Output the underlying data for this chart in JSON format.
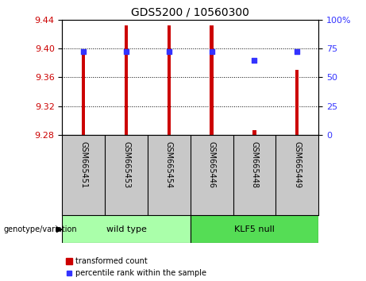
{
  "title": "GDS5200 / 10560300",
  "samples": [
    "GSM665451",
    "GSM665453",
    "GSM665454",
    "GSM665446",
    "GSM665448",
    "GSM665449"
  ],
  "ylim_left": [
    9.28,
    9.44
  ],
  "yticks_left": [
    9.28,
    9.32,
    9.36,
    9.4,
    9.44
  ],
  "yticks_right": [
    0,
    25,
    50,
    75,
    100
  ],
  "ylabel_left_color": "#CC0000",
  "ylabel_right_color": "#3333FF",
  "bar_bottom": 9.28,
  "bar_tops": [
    9.395,
    9.432,
    9.432,
    9.432,
    9.286,
    9.37
  ],
  "bar_color": "#CC0000",
  "bar_width": 0.08,
  "dot_percentiles": [
    72,
    72,
    72,
    72,
    65,
    72
  ],
  "dot_color": "#3333FF",
  "dot_size": 18,
  "legend_red_label": "transformed count",
  "legend_blue_label": "percentile rank within the sample",
  "group_annotation": "genotype/variation",
  "bg_xlabel": "#C8C8C8",
  "bg_group_wt": "#AAFFAA",
  "bg_group_kn": "#55DD55",
  "wild_type_indices": [
    0,
    1,
    2
  ],
  "klf5_indices": [
    3,
    4,
    5
  ]
}
